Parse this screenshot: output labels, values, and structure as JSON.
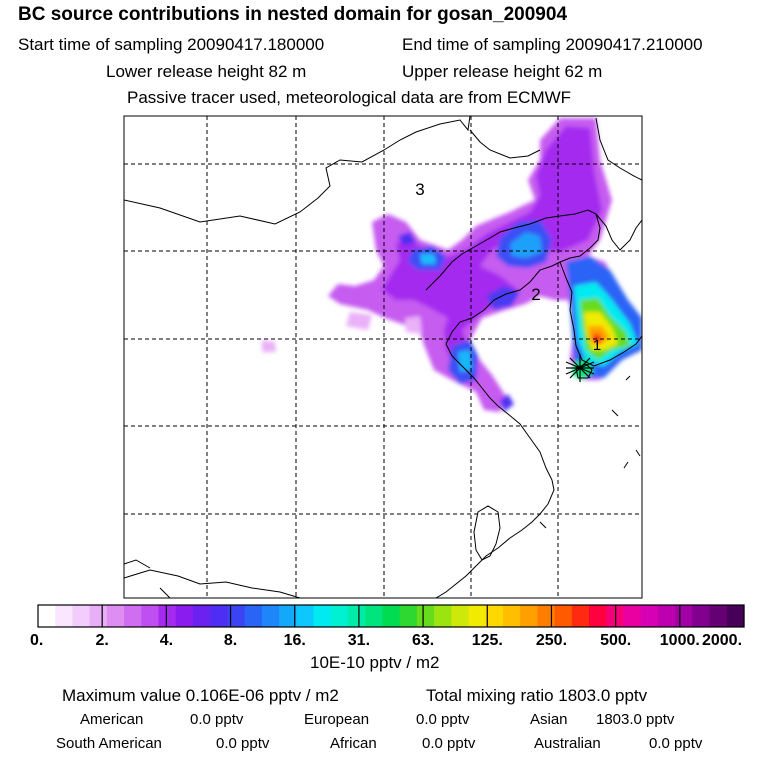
{
  "header": {
    "title": "BC  source contributions in nested domain for gosan_200904",
    "start_label": "Start time of sampling 20090417.180000",
    "end_label": "End time of sampling 20090417.210000",
    "lower_label": "Lower release height   82 m",
    "upper_label": "Upper release height   62 m",
    "note": "Passive tracer used, meteorological data are from ECMWF"
  },
  "chart_data": {
    "type": "heatmap",
    "title": "BC  source contributions in nested domain for gosan_200904",
    "map_labels": [
      "3",
      "2",
      "1"
    ],
    "colorbar": {
      "tick_labels": [
        "0.",
        "2.",
        "4.",
        "8.",
        "16.",
        "31.",
        "63.",
        "125.",
        "250.",
        "500.",
        "1000.",
        "2000."
      ],
      "colors": [
        "#ffffff",
        "#fbe6ff",
        "#f3cdfc",
        "#e9aef8",
        "#de8df3",
        "#cf6ef0",
        "#bf4ff0",
        "#a52aef",
        "#8a1cf0",
        "#6b22f0",
        "#4e2ef2",
        "#3a44f4",
        "#2a64f6",
        "#1e86f8",
        "#14a8fa",
        "#0cc8fc",
        "#00eaf2",
        "#00f0d2",
        "#00eca8",
        "#00e47e",
        "#00dc52",
        "#2ed830",
        "#66dc1c",
        "#9ce410",
        "#cde80a",
        "#f2ea00",
        "#ffd800",
        "#ffbe00",
        "#ffa000",
        "#ff7e00",
        "#ff5a00",
        "#ff2a10",
        "#ff0040",
        "#f6007a",
        "#ea00a0",
        "#d800b4",
        "#bc00b0",
        "#a000a4",
        "#82008e",
        "#640074",
        "#46005a"
      ],
      "unit": "10E-10 pptv / m2"
    }
  },
  "stats": {
    "max_line": "Maximum value  0.106E-06 pptv / m2",
    "total_line": "Total mixing ratio     1803.0 pptv",
    "american_label": "American",
    "american_value": "0.0 pptv",
    "european_label": "European",
    "european_value": "0.0 pptv",
    "asian_label": "Asian",
    "asian_value": "1803.0 pptv",
    "southam_label": "South American",
    "southam_value": "0.0 pptv",
    "african_label": "African",
    "african_value": "0.0 pptv",
    "australian_label": "Australian",
    "australian_value": "0.0 pptv"
  }
}
